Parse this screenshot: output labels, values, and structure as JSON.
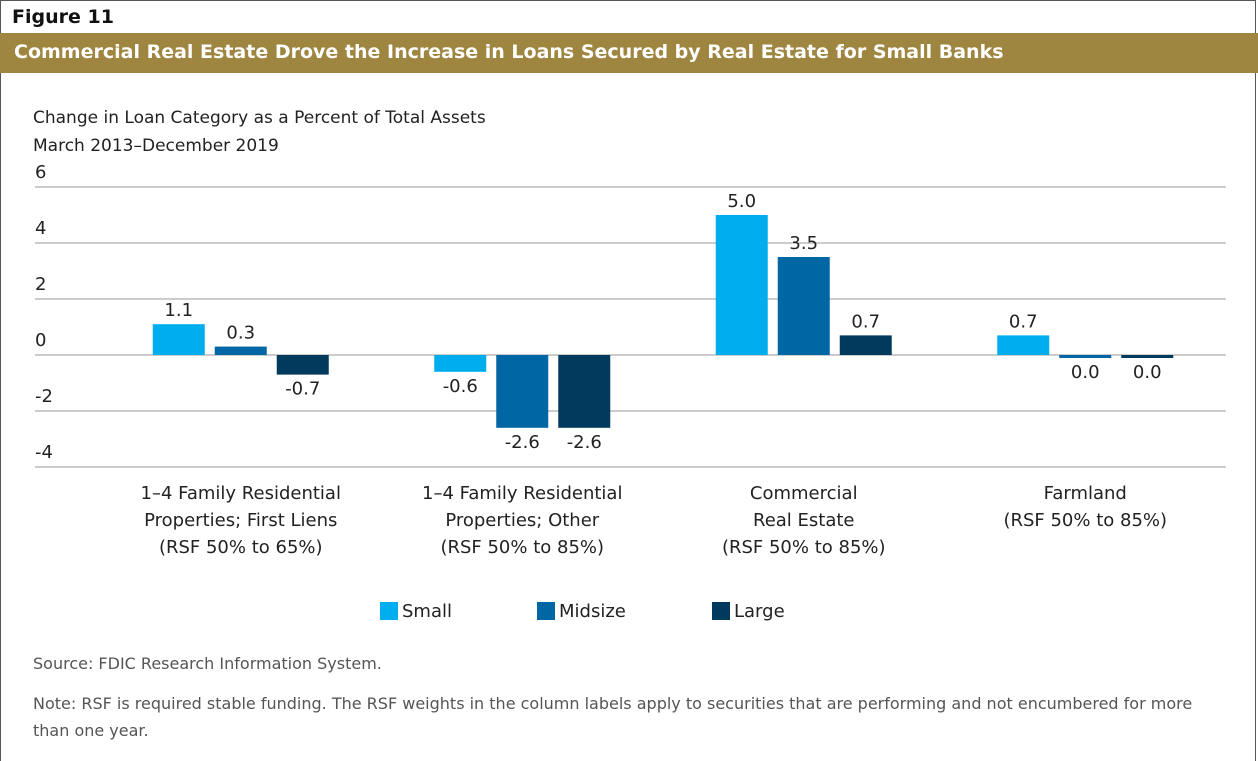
{
  "figure_label": "Figure 11",
  "chart_data": {
    "type": "bar",
    "title": "Commercial Real Estate Drove the Increase in Loans Secured by Real Estate for Small Banks",
    "subtitle": [
      "Change in Loan Category as a Percent of Total Assets",
      "March 2013–December 2019"
    ],
    "categories": [
      "1–4 Family Residential\nProperties; First Liens\n(RSF 50% to 65%)",
      "1–4 Family Residential\nProperties; Other\n(RSF 50% to 85%)",
      "Commercial\nReal Estate\n(RSF 50% to 85%)",
      "Farmland\n(RSF 50% to 85%)"
    ],
    "series": [
      {
        "name": "Small",
        "color": "#00aeef",
        "values": [
          1.1,
          -0.6,
          5.0,
          0.7
        ],
        "value_labels": [
          "1.1",
          "-0.6",
          "5.0",
          "0.7"
        ]
      },
      {
        "name": "Midsize",
        "color": "#0066a4",
        "values": [
          0.3,
          -2.6,
          3.5,
          0.0
        ],
        "value_labels": [
          "0.3",
          "-2.6",
          "3.5",
          "0.0"
        ]
      },
      {
        "name": "Large",
        "color": "#003a5d",
        "values": [
          -0.7,
          -2.6,
          0.7,
          0.0
        ],
        "value_labels": [
          "-0.7",
          "-2.6",
          "0.7",
          "0.0"
        ]
      }
    ],
    "ylim": [
      -4,
      6
    ],
    "yticks": [
      6,
      4,
      2,
      0,
      -2,
      -4
    ],
    "grid": true,
    "source": "Source: FDIC Research Information System.",
    "note": "Note: RSF is required stable funding. The RSF weights in the column labels apply to securities that are performing and not encumbered for more than one year."
  }
}
